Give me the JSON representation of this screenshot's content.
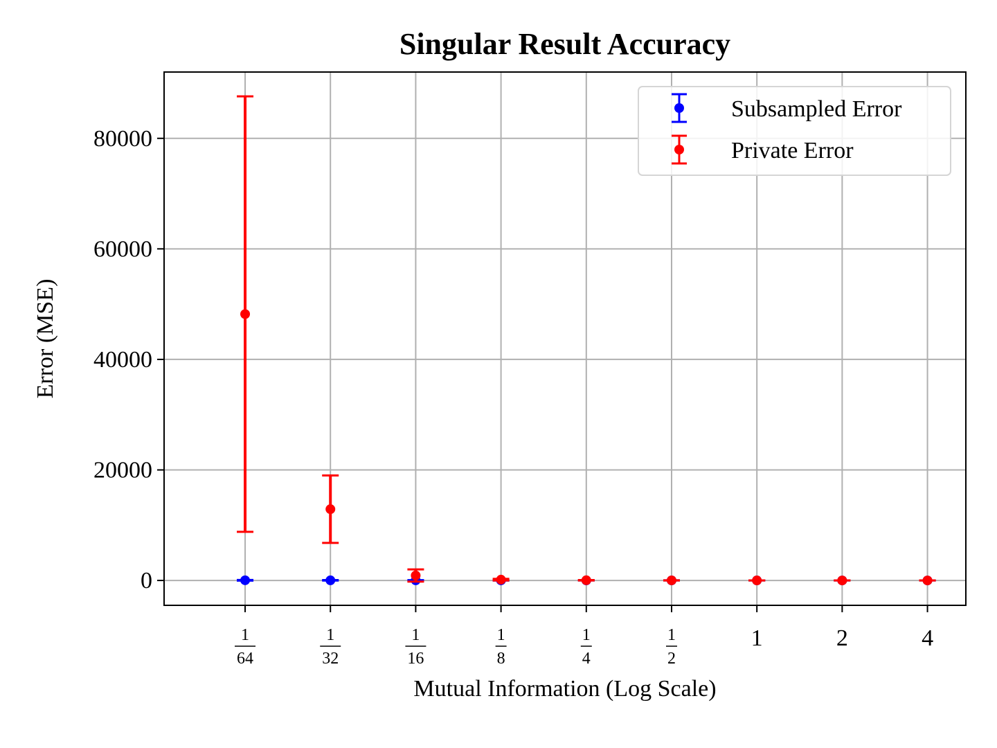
{
  "chart_data": {
    "type": "scatter",
    "title": "Singular Result Accuracy",
    "xlabel": "Mutual Information (Log Scale)",
    "ylabel": "Error (MSE)",
    "x_scale": "log2",
    "xlim": [
      -6.95,
      2.45
    ],
    "ylim": [
      -4500,
      92000
    ],
    "grid": true,
    "legend_position": "top-right",
    "x_ticks": [
      {
        "value": -6,
        "kind": "fraction",
        "num": "1",
        "den": "64"
      },
      {
        "value": -5,
        "kind": "fraction",
        "num": "1",
        "den": "32"
      },
      {
        "value": -4,
        "kind": "fraction",
        "num": "1",
        "den": "16"
      },
      {
        "value": -3,
        "kind": "fraction",
        "num": "1",
        "den": "8"
      },
      {
        "value": -2,
        "kind": "fraction",
        "num": "1",
        "den": "4"
      },
      {
        "value": -1,
        "kind": "fraction",
        "num": "1",
        "den": "2"
      },
      {
        "value": 0,
        "kind": "integer",
        "label": "1"
      },
      {
        "value": 1,
        "kind": "integer",
        "label": "2"
      },
      {
        "value": 2,
        "kind": "integer",
        "label": "4"
      }
    ],
    "y_ticks": [
      {
        "value": 0,
        "label": "0"
      },
      {
        "value": 20000,
        "label": "20000"
      },
      {
        "value": 40000,
        "label": "40000"
      },
      {
        "value": 60000,
        "label": "60000"
      },
      {
        "value": 80000,
        "label": "80000"
      }
    ],
    "series": [
      {
        "name": "Subsampled Error",
        "color": "#0000ff",
        "x": [
          -6,
          -5,
          -4,
          -3,
          -2,
          -1,
          0,
          1,
          2
        ],
        "y": [
          30,
          25,
          20,
          15,
          10,
          8,
          5,
          3,
          2
        ],
        "yerr": [
          60,
          50,
          40,
          30,
          20,
          15,
          10,
          6,
          4
        ]
      },
      {
        "name": "Private Error",
        "color": "#ff0000",
        "x": [
          -6,
          -5,
          -4,
          -3,
          -2,
          -1,
          0,
          1,
          2
        ],
        "y": [
          48200,
          12900,
          900,
          150,
          40,
          15,
          6,
          3,
          2
        ],
        "yerr": [
          39400,
          6100,
          1100,
          150,
          40,
          15,
          6,
          3,
          2
        ]
      }
    ]
  }
}
